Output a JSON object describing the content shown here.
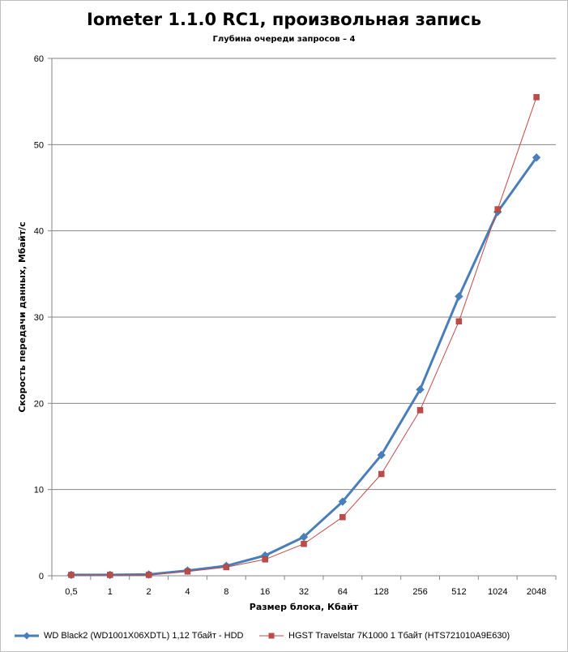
{
  "chart_data": {
    "type": "line",
    "title": "Iometer 1.1.0 RC1, произвольная запись",
    "subtitle": "Глубина очереди запросов – 4",
    "xlabel": "Размер блока, Кбайт",
    "ylabel": "Скорость передачи данных, Мбайт/с",
    "categories": [
      "0,5",
      "1",
      "2",
      "4",
      "8",
      "16",
      "32",
      "64",
      "128",
      "256",
      "512",
      "1024",
      "2048"
    ],
    "ylim": [
      0,
      60
    ],
    "yticks": [
      0,
      10,
      20,
      30,
      40,
      50,
      60
    ],
    "grid": true,
    "legend_position": "bottom",
    "series": [
      {
        "name": "WD Black2 (WD1001X06XDTL) 1,12 Тбайт - HDD",
        "color": "#4a7ebb",
        "marker": "diamond",
        "values": [
          0.1,
          0.1,
          0.15,
          0.6,
          1.15,
          2.35,
          4.5,
          8.6,
          14.0,
          21.6,
          32.4,
          42.2,
          48.5
        ]
      },
      {
        "name": "HGST Travelstar 7K1000 1 Тбайт (HTS721010A9E630)",
        "color": "#be4b48",
        "marker": "square",
        "values": [
          0.1,
          0.1,
          0.1,
          0.5,
          1.0,
          1.9,
          3.7,
          6.8,
          11.8,
          19.2,
          29.5,
          42.5,
          55.5
        ]
      }
    ]
  }
}
